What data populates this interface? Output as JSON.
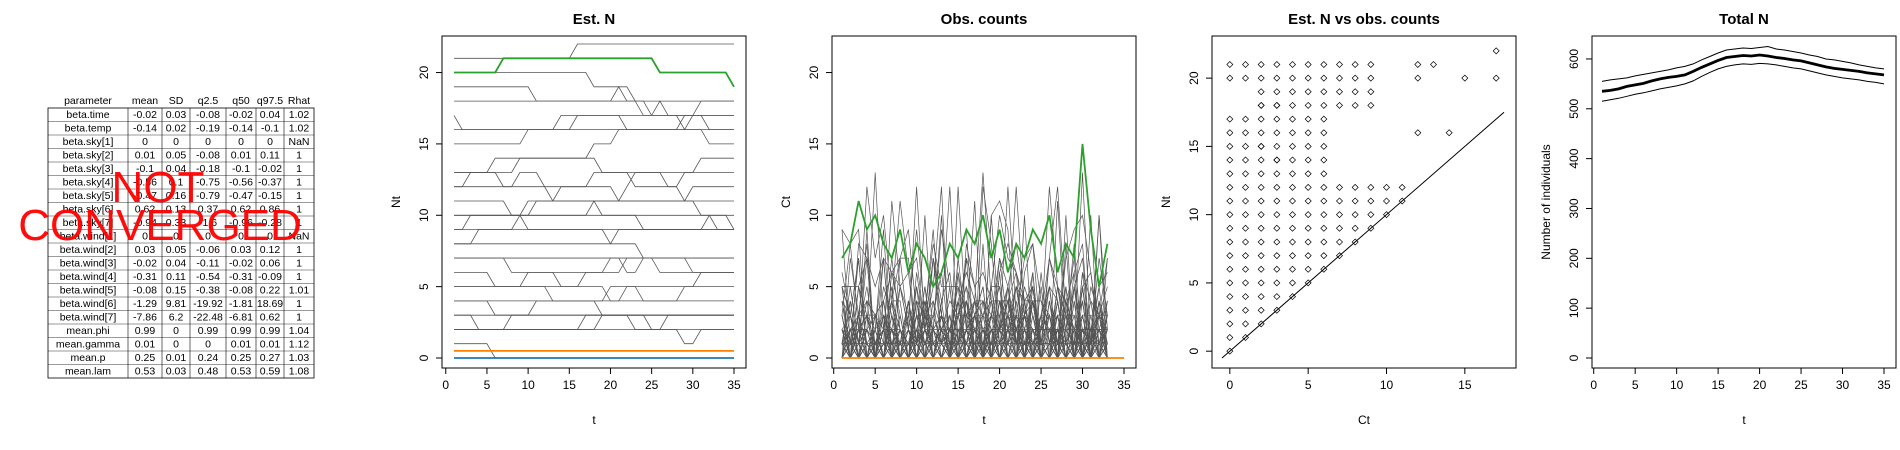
{
  "table": {
    "headers": [
      "parameter",
      "mean",
      "SD",
      "q2.5",
      "q50",
      "q97.5",
      "Rhat"
    ],
    "rows": [
      [
        "beta.time",
        "-0.02",
        "0.03",
        "-0.08",
        "-0.02",
        "0.04",
        "1.02"
      ],
      [
        "beta.temp",
        "-0.14",
        "0.02",
        "-0.19",
        "-0.14",
        "-0.1",
        "1.02"
      ],
      [
        "beta.sky[1]",
        "0",
        "0",
        "0",
        "0",
        "0",
        "NaN"
      ],
      [
        "beta.sky[2]",
        "0.01",
        "0.05",
        "-0.08",
        "0.01",
        "0.11",
        "1"
      ],
      [
        "beta.sky[3]",
        "-0.1",
        "0.04",
        "-0.18",
        "-0.1",
        "-0.02",
        "1"
      ],
      [
        "beta.sky[4]",
        "-0.56",
        "0.1",
        "-0.75",
        "-0.56",
        "-0.37",
        "1"
      ],
      [
        "beta.sky[5]",
        "-0.47",
        "0.16",
        "-0.79",
        "-0.47",
        "-0.15",
        "1"
      ],
      [
        "beta.sky[6]",
        "0.62",
        "0.13",
        "0.37",
        "0.62",
        "0.86",
        "1"
      ],
      [
        "beta.sky[7]",
        "-0.94",
        "0.33",
        "-1.6",
        "-0.96",
        "-0.28",
        "1"
      ],
      [
        "beta.wind[1]",
        "0",
        "0",
        "0",
        "0",
        "0",
        "NaN"
      ],
      [
        "beta.wind[2]",
        "0.03",
        "0.05",
        "-0.06",
        "0.03",
        "0.12",
        "1"
      ],
      [
        "beta.wind[3]",
        "-0.02",
        "0.04",
        "-0.11",
        "-0.02",
        "0.06",
        "1"
      ],
      [
        "beta.wind[4]",
        "-0.31",
        "0.11",
        "-0.54",
        "-0.31",
        "-0.09",
        "1"
      ],
      [
        "beta.wind[5]",
        "-0.08",
        "0.15",
        "-0.38",
        "-0.08",
        "0.22",
        "1.01"
      ],
      [
        "beta.wind[6]",
        "-1.29",
        "9.81",
        "-19.92",
        "-1.81",
        "18.69",
        "1"
      ],
      [
        "beta.wind[7]",
        "-7.86",
        "6.2",
        "-22.48",
        "-6.81",
        "0.62",
        "1"
      ],
      [
        "mean.phi",
        "0.99",
        "0",
        "0.99",
        "0.99",
        "0.99",
        "1.04"
      ],
      [
        "mean.gamma",
        "0.01",
        "0",
        "0",
        "0.01",
        "0.01",
        "1.12"
      ],
      [
        "mean.p",
        "0.25",
        "0.01",
        "0.24",
        "0.25",
        "0.27",
        "1.03"
      ],
      [
        "mean.lam",
        "0.53",
        "0.03",
        "0.48",
        "0.53",
        "0.59",
        "1.08"
      ]
    ],
    "overlay_lines": [
      "NOT",
      "CONVERGED"
    ]
  },
  "chart_data": [
    {
      "type": "line",
      "title": "Est. N",
      "xlabel": "t",
      "ylabel": "Nt",
      "xlim": [
        1,
        35
      ],
      "ylim": [
        0,
        22
      ],
      "xticks": [
        0,
        5,
        10,
        15,
        20,
        25,
        30,
        35
      ],
      "yticks": [
        0,
        5,
        10,
        15,
        20
      ],
      "x": [
        1,
        2,
        3,
        4,
        5,
        6,
        7,
        8,
        9,
        10,
        11,
        12,
        13,
        14,
        15,
        16,
        17,
        18,
        19,
        20,
        21,
        22,
        23,
        24,
        25,
        26,
        27,
        28,
        29,
        30,
        31,
        32,
        33,
        34,
        35
      ],
      "series": [
        {
          "color": "#2ca02c",
          "values": [
            20,
            20,
            20,
            20,
            20,
            20,
            21,
            21,
            21,
            21,
            21,
            21,
            21,
            21,
            21,
            21,
            21,
            21,
            21,
            21,
            21,
            21,
            21,
            21,
            21,
            20,
            20,
            20,
            20,
            20,
            20,
            20,
            20,
            20,
            19
          ]
        },
        {
          "color": "#ff7f00",
          "values": [
            0.5,
            0.5,
            0.5,
            0.5,
            0.5,
            0.5,
            0.5,
            0.5,
            0.5,
            0.5,
            0.5,
            0.5,
            0.5,
            0.5,
            0.5,
            0.5,
            0.5,
            0.5,
            0.5,
            0.5,
            0.5,
            0.5,
            0.5,
            0.5,
            0.5,
            0.5,
            0.5,
            0.5,
            0.5,
            0.5,
            0.5,
            0.5,
            0.5,
            0.5,
            0.5
          ]
        },
        {
          "color": "#1f77b4",
          "values": [
            0,
            0,
            0,
            0,
            0,
            0,
            0,
            0,
            0,
            0,
            0,
            0,
            0,
            0,
            0,
            0,
            0,
            0,
            0,
            0,
            0,
            0,
            0,
            0,
            0,
            0,
            0,
            0,
            0,
            0,
            0,
            0,
            0,
            0,
            0
          ]
        }
      ],
      "background_series_color": "#555555"
    },
    {
      "type": "line",
      "title": "Obs. counts",
      "xlabel": "t",
      "ylabel": "Ct",
      "xlim": [
        1,
        35
      ],
      "ylim": [
        0,
        22
      ],
      "xticks": [
        0,
        5,
        10,
        15,
        20,
        25,
        30,
        35
      ],
      "yticks": [
        0,
        5,
        10,
        15,
        20
      ],
      "x": [
        1,
        2,
        3,
        4,
        5,
        6,
        7,
        8,
        9,
        10,
        11,
        12,
        13,
        14,
        15,
        16,
        17,
        18,
        19,
        20,
        21,
        22,
        23,
        24,
        25,
        26,
        27,
        28,
        29,
        30,
        31,
        32,
        33,
        34,
        35
      ],
      "series": [
        {
          "color": "#2ca02c",
          "values": [
            7,
            8,
            11,
            9,
            10,
            8,
            7,
            9,
            6,
            8,
            7,
            5,
            6,
            8,
            7,
            9,
            8,
            10,
            7,
            9,
            6,
            8,
            7,
            9,
            8,
            10,
            6,
            8,
            7,
            15,
            9,
            5,
            8,
            null,
            null
          ]
        },
        {
          "color": "#ff7f00",
          "values": [
            0,
            0,
            0,
            0,
            0,
            0,
            0,
            0,
            0,
            0,
            0,
            0,
            0,
            0,
            0,
            0,
            0,
            0,
            0,
            0,
            0,
            0,
            0,
            0,
            0,
            0,
            0,
            0,
            0,
            0,
            0,
            0,
            0,
            0,
            0
          ]
        }
      ],
      "background_series_color": "#555555"
    },
    {
      "type": "scatter",
      "title": "Est. N vs obs. counts",
      "xlabel": "Ct",
      "ylabel": "Nt",
      "xlim": [
        -0.5,
        17.5
      ],
      "ylim": [
        -0.5,
        22.5
      ],
      "xticks": [
        0,
        5,
        10,
        15
      ],
      "yticks": [
        0,
        5,
        10,
        15,
        20
      ],
      "reference_line": "y = x",
      "marker": "diamond"
    },
    {
      "type": "line",
      "title": "Total N",
      "xlabel": "t",
      "ylabel": "Number of individuals",
      "xlim": [
        1,
        35
      ],
      "ylim": [
        0,
        630
      ],
      "xticks": [
        0,
        5,
        10,
        15,
        20,
        25,
        30,
        35
      ],
      "yticks": [
        0,
        100,
        200,
        300,
        400,
        500,
        600
      ],
      "x": [
        1,
        2,
        3,
        4,
        5,
        6,
        7,
        8,
        9,
        10,
        11,
        12,
        13,
        14,
        15,
        16,
        17,
        18,
        19,
        20,
        21,
        22,
        23,
        24,
        25,
        26,
        27,
        28,
        29,
        30,
        31,
        32,
        33,
        34,
        35
      ],
      "series": [
        {
          "name": "upper",
          "values": [
            555,
            558,
            560,
            562,
            566,
            569,
            572,
            575,
            578,
            582,
            585,
            590,
            598,
            605,
            612,
            618,
            620,
            622,
            621,
            623,
            625,
            620,
            618,
            615,
            612,
            608,
            605,
            600,
            598,
            595,
            592,
            588,
            585,
            582,
            580
          ]
        },
        {
          "name": "mean",
          "values": [
            535,
            537,
            540,
            545,
            548,
            551,
            556,
            560,
            563,
            565,
            568,
            575,
            583,
            590,
            597,
            603,
            605,
            607,
            606,
            608,
            606,
            603,
            601,
            598,
            596,
            592,
            588,
            584,
            581,
            579,
            577,
            575,
            572,
            570,
            568
          ]
        },
        {
          "name": "lower",
          "values": [
            515,
            518,
            521,
            525,
            529,
            532,
            536,
            540,
            543,
            546,
            550,
            556,
            565,
            573,
            580,
            585,
            588,
            590,
            589,
            591,
            590,
            588,
            585,
            582,
            580,
            576,
            572,
            568,
            565,
            562,
            560,
            558,
            555,
            553,
            550
          ]
        }
      ]
    }
  ]
}
